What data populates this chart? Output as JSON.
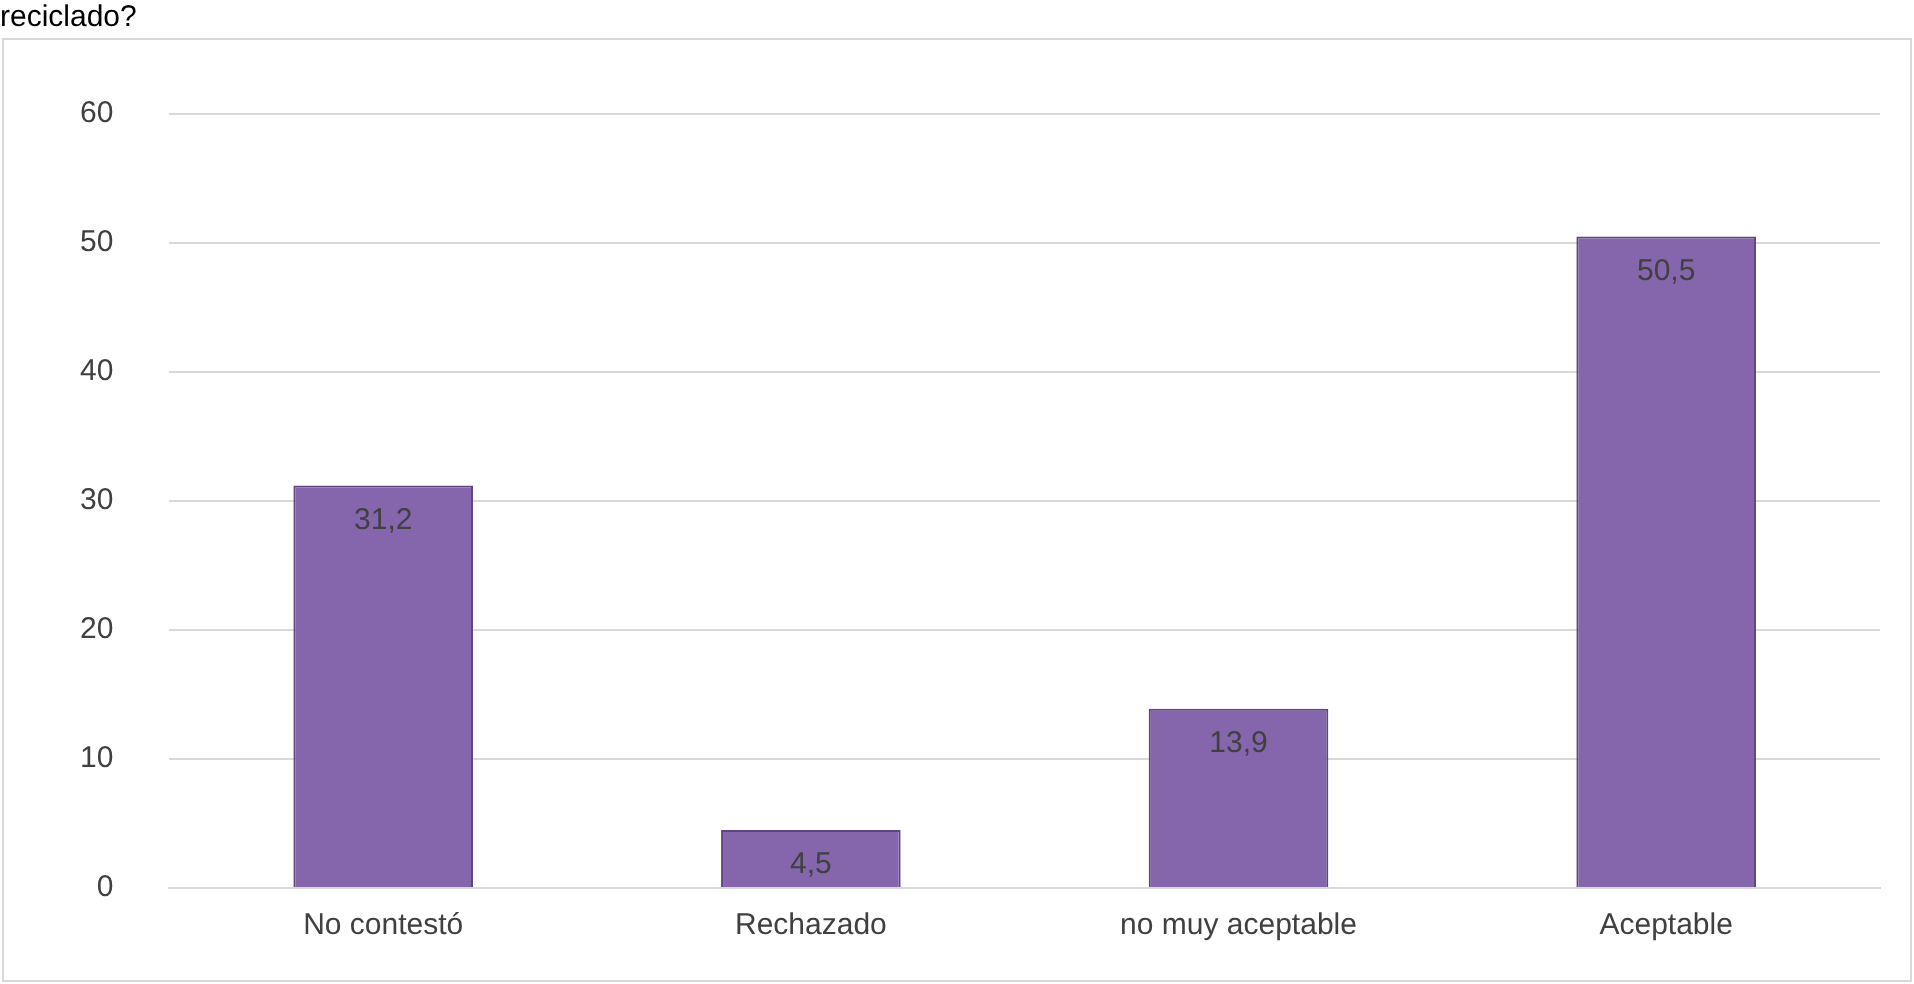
{
  "chart_data": {
    "type": "bar",
    "title": "reciclado?",
    "categories": [
      "No contestó",
      "Rechazado",
      "no muy aceptable",
      "Aceptable"
    ],
    "values": [
      31.2,
      4.5,
      13.9,
      50.5
    ],
    "value_labels": [
      "31,2",
      "4,5",
      "13,9",
      "50,5"
    ],
    "color": "#8566ad",
    "ylim": [
      0,
      60
    ],
    "yticks": [
      0,
      10,
      20,
      30,
      40,
      50,
      60
    ],
    "grid": "y",
    "legend": false
  }
}
